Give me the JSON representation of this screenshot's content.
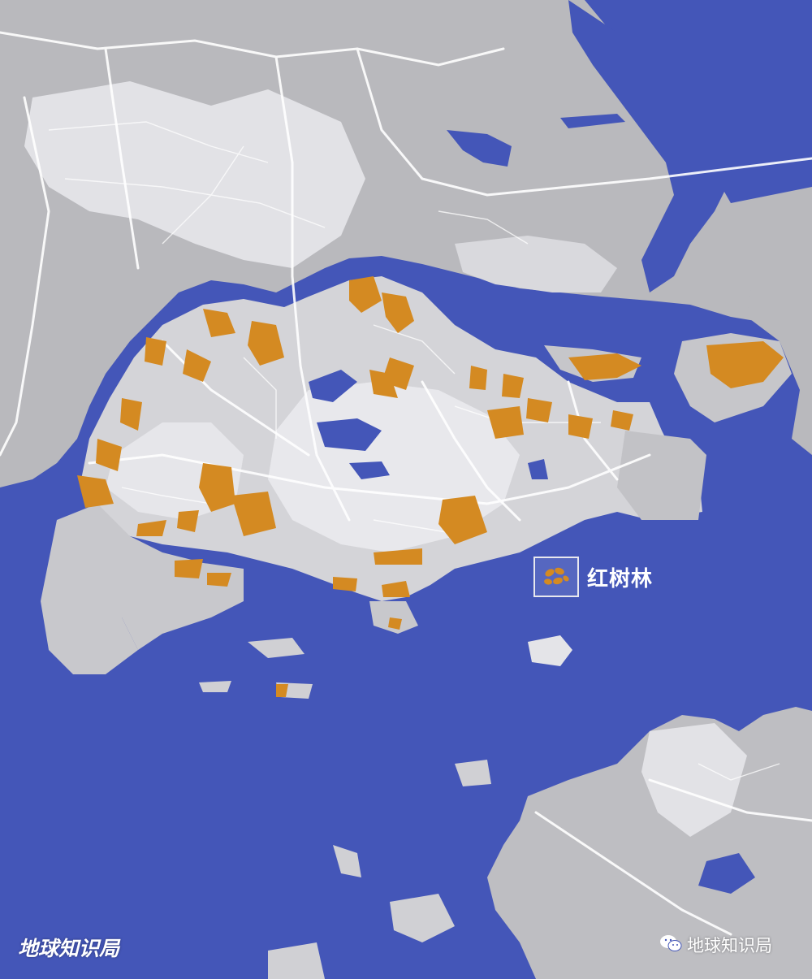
{
  "map": {
    "colors": {
      "water": "#4456b8",
      "land": "#b9b9bd",
      "urban": "#e4e4e8",
      "roads": "#ffffff",
      "mangrove": "#d48a22"
    },
    "legend": {
      "icon": "mangrove-swatch-icon",
      "label": "红树林"
    },
    "watermark_left": "地球知识局",
    "watermark_right": {
      "icon": "wechat-icon",
      "text": "地球知识局"
    }
  }
}
